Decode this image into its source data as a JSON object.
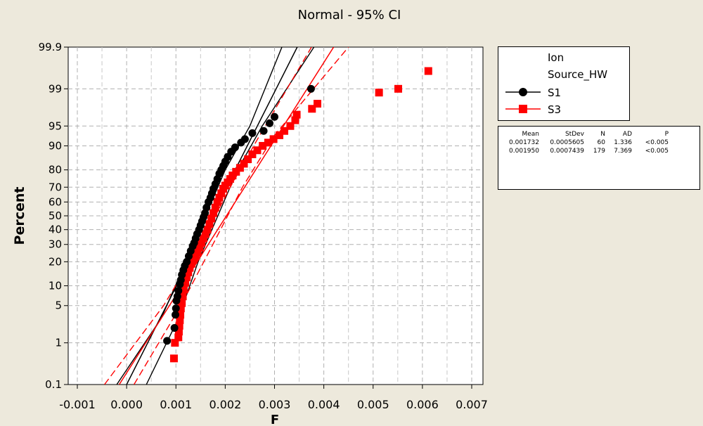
{
  "chart_data": {
    "type": "scatter",
    "title": "Normal - 95% CI",
    "xlabel": "F",
    "ylabel": "Percent",
    "xlim": [
      -0.0013,
      0.0072
    ],
    "x_ticks": [
      "-0.001",
      "0.000",
      "0.001",
      "0.002",
      "0.003",
      "0.004",
      "0.005",
      "0.006",
      "0.007"
    ],
    "x_tick_values": [
      -0.001,
      0,
      0.001,
      0.002,
      0.003,
      0.004,
      0.005,
      0.006,
      0.007
    ],
    "y_scale": "normal-probability",
    "y_ticks": [
      "99.9",
      "99",
      "95",
      "90",
      "80",
      "70",
      "60",
      "50",
      "40",
      "30",
      "20",
      "10",
      "5",
      "1",
      "0.1"
    ],
    "y_tick_values": [
      99.9,
      99,
      95,
      90,
      80,
      70,
      60,
      50,
      40,
      30,
      20,
      10,
      5,
      1,
      0.1
    ],
    "grid": true,
    "legend": {
      "title_line1": "Ion",
      "title_line2": "Source_HW",
      "position": "right"
    },
    "series": [
      {
        "name": "S1",
        "color": "#000000",
        "marker": "circle",
        "mean": 0.001732,
        "stdev": 0.0005605,
        "n": 60,
        "ad": 1.336,
        "p": "<0.005",
        "points": [
          [
            0.00082,
            1.1
          ],
          [
            0.00097,
            2.0
          ],
          [
            0.00099,
            3.5
          ],
          [
            0.001,
            4.5
          ],
          [
            0.00101,
            6.0
          ],
          [
            0.00103,
            7.0
          ],
          [
            0.00105,
            8.5
          ],
          [
            0.00108,
            10.5
          ],
          [
            0.0011,
            12.0
          ],
          [
            0.00112,
            14.0
          ],
          [
            0.00115,
            16.0
          ],
          [
            0.00118,
            18.0
          ],
          [
            0.00122,
            20.0
          ],
          [
            0.00126,
            23.0
          ],
          [
            0.0013,
            26.0
          ],
          [
            0.00134,
            29.0
          ],
          [
            0.00137,
            31.0
          ],
          [
            0.0014,
            34.0
          ],
          [
            0.00143,
            37.0
          ],
          [
            0.00147,
            40.0
          ],
          [
            0.0015,
            43.0
          ],
          [
            0.00153,
            46.0
          ],
          [
            0.00156,
            49.0
          ],
          [
            0.00159,
            52.0
          ],
          [
            0.00162,
            56.0
          ],
          [
            0.00166,
            60.0
          ],
          [
            0.0017,
            63.0
          ],
          [
            0.00173,
            66.0
          ],
          [
            0.00176,
            69.0
          ],
          [
            0.0018,
            72.0
          ],
          [
            0.00184,
            75.0
          ],
          [
            0.00188,
            78.0
          ],
          [
            0.00192,
            80.0
          ],
          [
            0.00196,
            82.0
          ],
          [
            0.002,
            84.0
          ],
          [
            0.00205,
            86.0
          ],
          [
            0.00212,
            88.0
          ],
          [
            0.0022,
            89.5
          ],
          [
            0.00232,
            91.0
          ],
          [
            0.0024,
            92.0
          ],
          [
            0.00255,
            93.5
          ],
          [
            0.00278,
            94.0
          ],
          [
            0.0029,
            95.5
          ],
          [
            0.003,
            96.5
          ],
          [
            0.00374,
            99.0
          ]
        ],
        "fit_line": [
          [
            0.0,
            0.1
          ],
          [
            0.00346,
            99.9
          ]
        ],
        "ci_lower": [
          [
            -0.0002,
            0.1
          ],
          [
            0.0007,
            3
          ],
          [
            0.0012,
            20
          ],
          [
            0.0016,
            50
          ],
          [
            0.002,
            80
          ],
          [
            0.0025,
            95
          ],
          [
            0.00315,
            99.9
          ]
        ],
        "ci_upper": [
          [
            0.0004,
            0.1
          ],
          [
            0.00105,
            3
          ],
          [
            0.00145,
            20
          ],
          [
            0.00185,
            50
          ],
          [
            0.00225,
            80
          ],
          [
            0.00275,
            95
          ],
          [
            0.0038,
            99.9
          ]
        ]
      },
      {
        "name": "S3",
        "color": "#ff0000",
        "marker": "square",
        "mean": 0.00195,
        "stdev": 0.0007439,
        "n": 179,
        "ad": 7.369,
        "p": "<0.005",
        "points": [
          [
            0.00096,
            0.45
          ],
          [
            0.00098,
            1.0
          ],
          [
            0.00105,
            1.3
          ],
          [
            0.00106,
            1.7
          ],
          [
            0.00107,
            2.2
          ],
          [
            0.00108,
            2.8
          ],
          [
            0.00109,
            3.5
          ],
          [
            0.0011,
            4.5
          ],
          [
            0.00112,
            5.5
          ],
          [
            0.00114,
            7.0
          ],
          [
            0.00116,
            9.0
          ],
          [
            0.00119,
            11.0
          ],
          [
            0.00122,
            13.0
          ],
          [
            0.00125,
            15.0
          ],
          [
            0.00128,
            17.0
          ],
          [
            0.00132,
            19.0
          ],
          [
            0.00136,
            21.0
          ],
          [
            0.0014,
            23.0
          ],
          [
            0.00144,
            25.0
          ],
          [
            0.00148,
            28.0
          ],
          [
            0.00152,
            31.0
          ],
          [
            0.00156,
            34.0
          ],
          [
            0.0016,
            37.0
          ],
          [
            0.00164,
            40.0
          ],
          [
            0.00168,
            44.0
          ],
          [
            0.00172,
            48.0
          ],
          [
            0.00176,
            52.0
          ],
          [
            0.0018,
            56.0
          ],
          [
            0.00184,
            60.0
          ],
          [
            0.00188,
            63.0
          ],
          [
            0.00192,
            66.0
          ],
          [
            0.00196,
            69.0
          ],
          [
            0.002,
            71.0
          ],
          [
            0.00205,
            73.0
          ],
          [
            0.0021,
            75.0
          ],
          [
            0.00215,
            77.0
          ],
          [
            0.00222,
            79.0
          ],
          [
            0.0023,
            81.0
          ],
          [
            0.00238,
            83.0
          ],
          [
            0.00246,
            85.0
          ],
          [
            0.00255,
            87.0
          ],
          [
            0.00265,
            88.5
          ],
          [
            0.00276,
            90.0
          ],
          [
            0.00287,
            91.0
          ],
          [
            0.00298,
            92.0
          ],
          [
            0.0031,
            93.0
          ],
          [
            0.0032,
            94.0
          ],
          [
            0.00332,
            95.0
          ],
          [
            0.00342,
            96.0
          ],
          [
            0.00345,
            96.8
          ],
          [
            0.00376,
            97.5
          ],
          [
            0.00387,
            98.0
          ],
          [
            0.00512,
            98.8
          ],
          [
            0.00551,
            99.0
          ],
          [
            0.00612,
            99.6
          ]
        ],
        "fit_line": [
          [
            -0.00015,
            0.1
          ],
          [
            0.0042,
            99.9
          ]
        ],
        "ci_lower": [
          [
            -0.00045,
            0.1
          ],
          [
            0.00075,
            5
          ],
          [
            0.0015,
            30
          ],
          [
            0.0021,
            70
          ],
          [
            0.0027,
            93
          ],
          [
            0.00375,
            99.9
          ]
        ],
        "ci_upper": [
          [
            0.00015,
            0.1
          ],
          [
            0.0011,
            5
          ],
          [
            0.00175,
            30
          ],
          [
            0.00235,
            70
          ],
          [
            0.003,
            93
          ],
          [
            0.0045,
            99.9
          ]
        ]
      }
    ]
  },
  "stats_table": {
    "headers": [
      "Mean",
      "StDev",
      "N",
      "AD",
      "P"
    ],
    "rows": [
      [
        "0.001732",
        "0.0005605",
        "60",
        "1.336",
        "<0.005"
      ],
      [
        "0.001950",
        "0.0007439",
        "179",
        "7.369",
        "<0.005"
      ]
    ]
  }
}
